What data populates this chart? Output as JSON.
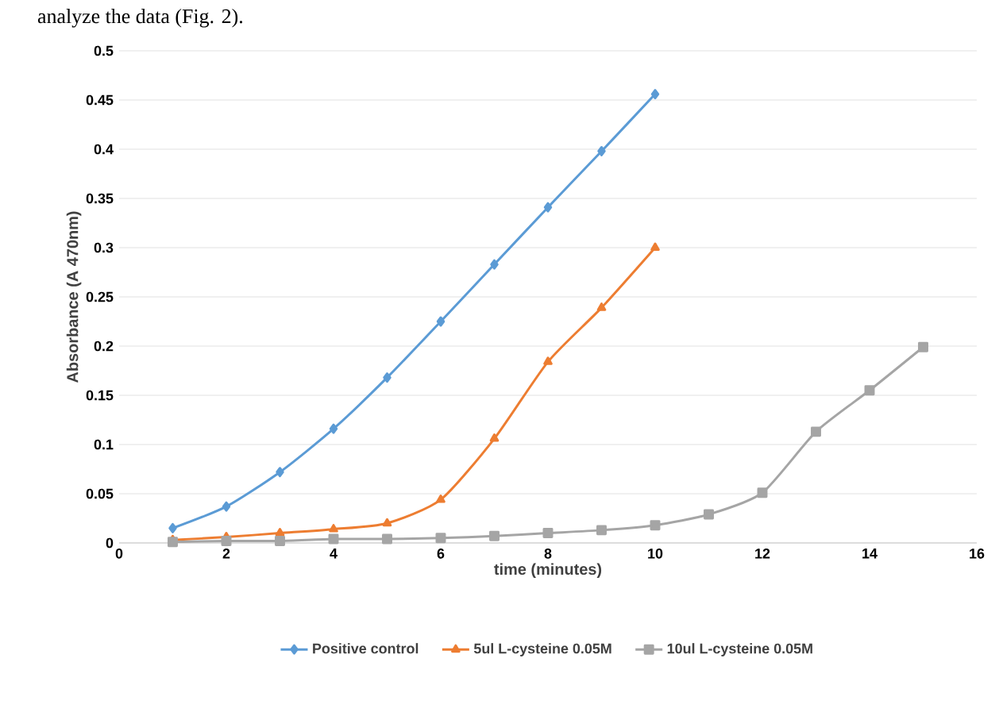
{
  "chart_data": {
    "type": "line",
    "xlabel": "time (minutes)",
    "ylabel": "Absorbance (A 470nm)",
    "annotations": [
      "analyze the data (Fig. 2)."
    ],
    "series": [
      {
        "name": "Positive control",
        "color": "#5b9bd5",
        "marker": "diamond",
        "x": [
          1,
          2,
          3,
          4,
          5,
          6,
          7,
          8,
          9,
          10
        ],
        "values": [
          0.015,
          0.037,
          0.072,
          0.116,
          0.168,
          0.225,
          0.283,
          0.341,
          0.398,
          0.456
        ]
      },
      {
        "name": "5ul  L-cysteine 0.05M",
        "color": "#ed7d31",
        "marker": "triangle",
        "x": [
          1,
          2,
          3,
          4,
          5,
          6,
          7,
          8,
          9,
          10
        ],
        "values": [
          0.003,
          0.006,
          0.01,
          0.014,
          0.02,
          0.044,
          0.106,
          0.184,
          0.239,
          0.3
        ]
      },
      {
        "name": "10ul  L-cysteine 0.05M",
        "color": "#a5a5a5",
        "marker": "square",
        "x": [
          1,
          2,
          3,
          4,
          5,
          6,
          7,
          8,
          9,
          10,
          11,
          12,
          13,
          14,
          15
        ],
        "values": [
          0.001,
          0.002,
          0.002,
          0.004,
          0.004,
          0.005,
          0.007,
          0.01,
          0.013,
          0.018,
          0.029,
          0.051,
          0.113,
          0.155,
          0.199
        ]
      }
    ],
    "xlim": [
      0,
      16
    ],
    "xticks": [
      0,
      2,
      4,
      6,
      8,
      10,
      12,
      14,
      16
    ],
    "ylim": [
      0,
      0.5
    ],
    "yticks": [
      0,
      0.05,
      0.1,
      0.15,
      0.2,
      0.25,
      0.3,
      0.35,
      0.4,
      0.45,
      0.5
    ],
    "grid": "y",
    "legend": "bottom",
    "line_style": "solid"
  }
}
